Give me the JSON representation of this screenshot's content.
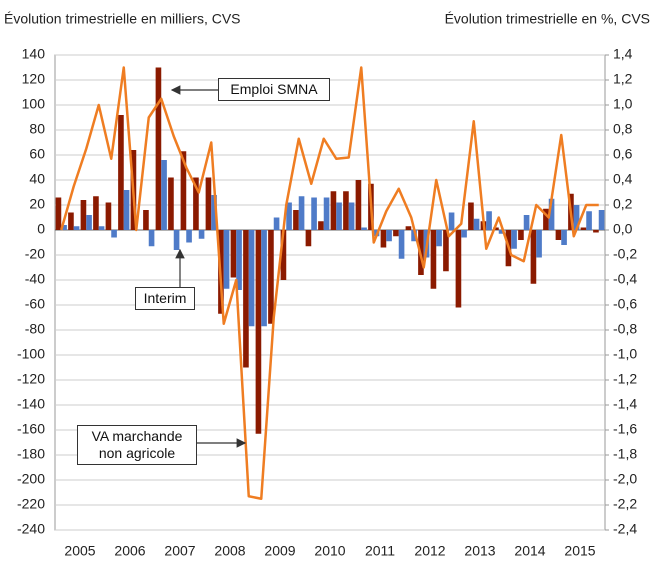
{
  "chart_data": {
    "type": "bar_line",
    "ylabel": "Évolution trimestrielle en milliers, CVS",
    "y2label": "Évolution trimestrielle en %, CVS",
    "categories": [
      "2005",
      null,
      null,
      null,
      "2006",
      null,
      null,
      null,
      "2007",
      null,
      null,
      null,
      "2008",
      null,
      null,
      null,
      "2009",
      null,
      null,
      null,
      "2010",
      null,
      null,
      null,
      "2011",
      null,
      null,
      null,
      "2012",
      null,
      null,
      null,
      "2013",
      null,
      null,
      null,
      "2014",
      null,
      null,
      null,
      "2015",
      null,
      null,
      null
    ],
    "series": [
      {
        "name": "Emploi SMNA",
        "color": "#8b1a00",
        "kind": "bar",
        "values": [
          26,
          14,
          24,
          27,
          22,
          92,
          64,
          16,
          130,
          42,
          63,
          42,
          42,
          -67,
          -38,
          -110,
          -163,
          -75,
          -40,
          16,
          -13,
          7,
          31,
          31,
          40,
          37,
          -14,
          -5,
          3,
          -36,
          -47,
          -33,
          -62,
          22,
          7,
          2,
          -29,
          -8,
          -43,
          17,
          -8,
          29,
          2,
          -2
        ]
      },
      {
        "name": "Interim",
        "color": "#4f7bc8",
        "kind": "bar",
        "values": [
          4,
          3,
          12,
          3,
          -6,
          32,
          0,
          -13,
          56,
          -16,
          -10,
          -7,
          28,
          -47,
          -48,
          -77,
          -77,
          10,
          22,
          27,
          26,
          26,
          22,
          22,
          2,
          -5,
          -9,
          -23,
          -9,
          -22,
          -13,
          14,
          -6,
          9,
          15,
          -3,
          -15,
          12,
          -22,
          25,
          -12,
          20,
          15,
          16
        ]
      },
      {
        "name": "VA marchande non agricole",
        "color": "#ef7d22",
        "kind": "line",
        "axis": "y2",
        "values": [
          0.0,
          0.35,
          0.65,
          1.0,
          0.57,
          1.3,
          0.0,
          0.9,
          1.05,
          0.75,
          0.5,
          0.3,
          0.7,
          -0.75,
          -0.4,
          -2.13,
          -2.15,
          -0.7,
          0.2,
          0.73,
          0.37,
          0.73,
          0.57,
          0.58,
          1.3,
          -0.1,
          0.15,
          0.33,
          0.1,
          -0.3,
          0.4,
          -0.05,
          0.05,
          0.87,
          -0.15,
          0.1,
          -0.2,
          -0.25,
          0.2,
          0.1,
          0.76,
          -0.05,
          0.2,
          0.2
        ]
      }
    ],
    "ylim": [
      -240,
      140
    ],
    "yticks": [
      140,
      120,
      100,
      80,
      60,
      40,
      20,
      0,
      -20,
      -40,
      -60,
      -80,
      -100,
      -120,
      -140,
      -160,
      -180,
      -200,
      -220,
      -240
    ],
    "y2lim": [
      -2.4,
      1.4
    ],
    "y2ticks": [
      {
        "value": 1.4,
        "label": "1,4"
      },
      {
        "value": 1.2,
        "label": "1,2"
      },
      {
        "value": 1.0,
        "label": "1,0"
      },
      {
        "value": 0.8,
        "label": "0,8"
      },
      {
        "value": 0.6,
        "label": "0,6"
      },
      {
        "value": 0.4,
        "label": "0,4"
      },
      {
        "value": 0.2,
        "label": "0,2"
      },
      {
        "value": 0.0,
        "label": "0,0"
      },
      {
        "value": -0.2,
        "label": "-0,2"
      },
      {
        "value": -0.4,
        "label": "-0,4"
      },
      {
        "value": -0.6,
        "label": "-0,6"
      },
      {
        "value": -0.8,
        "label": "-0,8"
      },
      {
        "value": -1.0,
        "label": "-1,0"
      },
      {
        "value": -1.2,
        "label": "-1,2"
      },
      {
        "value": -1.4,
        "label": "-1,4"
      },
      {
        "value": -1.6,
        "label": "-1,6"
      },
      {
        "value": -1.8,
        "label": "-1,8"
      },
      {
        "value": -2.0,
        "label": "-2,0"
      },
      {
        "value": -2.2,
        "label": "-2,2"
      },
      {
        "value": -2.4,
        "label": "-2,4"
      }
    ],
    "grid": true
  }
}
